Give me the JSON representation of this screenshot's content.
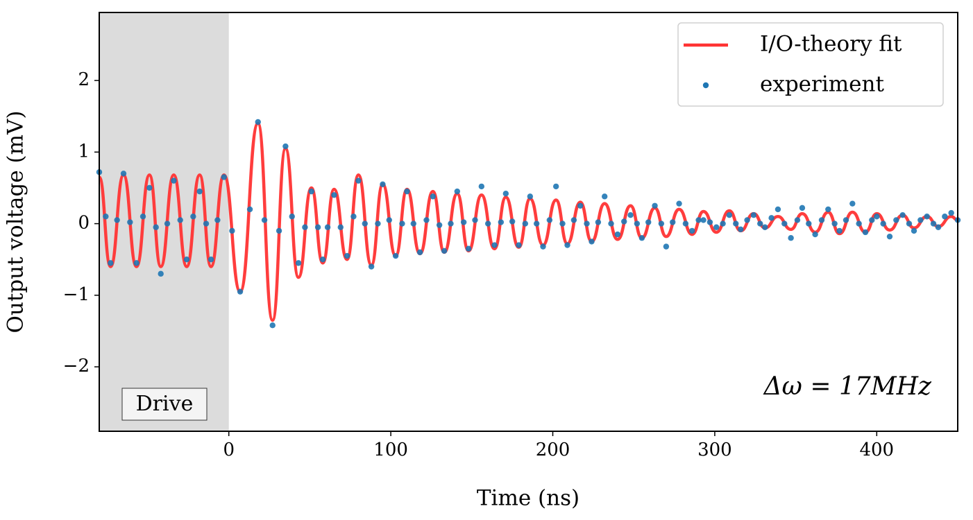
{
  "chart_data": {
    "type": "line",
    "xlabel": "Time (ns)",
    "ylabel": "Output voltage (mV)",
    "xlim": [
      -80,
      450
    ],
    "ylim": [
      -2.9,
      2.95
    ],
    "xticks": [
      0,
      100,
      200,
      300,
      400
    ],
    "yticks": [
      {
        "value": -2,
        "label": "−2"
      },
      {
        "value": -1,
        "label": "−1"
      },
      0,
      1,
      2
    ],
    "legend": "upper right",
    "shaded_region": {
      "xlim": [
        -80,
        0
      ],
      "label": "Drive",
      "color": "#dcdcdc"
    },
    "annotation": "Δω = 17MHz",
    "series": [
      {
        "name": "I/O-theory fit",
        "type": "line",
        "color": "#ff3333",
        "x": [
          -80,
          -73,
          -65,
          -57,
          -49,
          -42,
          -34,
          -26,
          -18,
          -11,
          -3,
          7,
          18,
          27,
          35,
          43,
          51,
          58,
          65,
          73,
          80,
          88,
          95,
          103,
          110,
          118,
          126,
          133,
          141,
          148,
          156,
          164,
          171,
          179,
          186,
          194,
          202,
          209,
          217,
          224,
          232,
          240,
          248,
          255,
          263,
          270,
          278,
          286,
          293,
          301,
          309,
          316,
          324,
          331,
          339,
          347,
          354,
          362,
          370,
          377,
          385,
          393,
          400,
          408,
          416,
          423,
          431,
          438,
          446,
          450
        ],
        "values": [
          0.65,
          -0.6,
          0.68,
          -0.6,
          0.68,
          -0.6,
          0.68,
          -0.6,
          0.68,
          -0.6,
          0.68,
          -0.95,
          1.4,
          -1.35,
          1.05,
          -0.75,
          0.5,
          -0.55,
          0.48,
          -0.5,
          0.68,
          -0.58,
          0.55,
          -0.45,
          0.48,
          -0.42,
          0.45,
          -0.4,
          0.42,
          -0.38,
          0.4,
          -0.35,
          0.37,
          -0.33,
          0.35,
          -0.3,
          0.33,
          -0.28,
          0.3,
          -0.25,
          0.28,
          -0.22,
          0.25,
          -0.2,
          0.22,
          -0.18,
          0.2,
          -0.15,
          0.17,
          -0.12,
          0.18,
          -0.1,
          0.14,
          -0.06,
          0.1,
          -0.08,
          0.14,
          -0.12,
          0.16,
          -0.14,
          0.16,
          -0.12,
          0.14,
          -0.09,
          0.12,
          -0.06,
          0.1,
          -0.04,
          0.1,
          0.05
        ]
      },
      {
        "name": "experiment",
        "type": "scatter",
        "color": "#1f77b4",
        "x": [
          -80,
          -76,
          -73,
          -69,
          -65,
          -61,
          -57,
          -53,
          -49,
          -45,
          -42,
          -38,
          -34,
          -30,
          -26,
          -22,
          -18,
          -14,
          -11,
          -7,
          -3,
          2,
          7,
          13,
          18,
          22,
          27,
          31,
          35,
          39,
          43,
          47,
          51,
          55,
          58,
          61,
          65,
          69,
          73,
          77,
          80,
          84,
          88,
          92,
          95,
          99,
          103,
          107,
          110,
          114,
          118,
          122,
          126,
          130,
          133,
          137,
          141,
          145,
          148,
          152,
          156,
          160,
          164,
          168,
          171,
          175,
          179,
          183,
          186,
          190,
          194,
          198,
          202,
          206,
          209,
          213,
          217,
          221,
          224,
          228,
          232,
          236,
          240,
          244,
          248,
          252,
          255,
          259,
          263,
          267,
          270,
          274,
          278,
          282,
          286,
          290,
          293,
          297,
          301,
          305,
          309,
          313,
          316,
          320,
          324,
          328,
          331,
          335,
          339,
          343,
          347,
          351,
          354,
          358,
          362,
          366,
          370,
          374,
          377,
          381,
          385,
          389,
          393,
          397,
          400,
          404,
          408,
          412,
          416,
          420,
          423,
          427,
          431,
          435,
          438,
          442,
          446,
          450
        ],
        "values": [
          0.72,
          0.1,
          -0.55,
          0.05,
          0.7,
          0.02,
          -0.55,
          0.1,
          0.5,
          -0.05,
          -0.7,
          0.0,
          0.6,
          0.05,
          -0.5,
          0.1,
          0.45,
          0.0,
          -0.5,
          0.05,
          0.65,
          -0.1,
          -0.95,
          0.2,
          1.42,
          0.05,
          -1.42,
          -0.1,
          1.08,
          0.1,
          -0.55,
          -0.05,
          0.45,
          -0.05,
          -0.5,
          -0.05,
          0.4,
          -0.05,
          -0.45,
          0.1,
          0.6,
          0.0,
          -0.6,
          0.0,
          0.55,
          0.05,
          -0.45,
          0.0,
          0.45,
          0.0,
          -0.4,
          0.05,
          0.38,
          -0.02,
          -0.38,
          0.0,
          0.45,
          0.02,
          -0.35,
          0.05,
          0.52,
          0.0,
          -0.3,
          0.02,
          0.42,
          0.03,
          -0.3,
          0.0,
          0.38,
          0.0,
          -0.32,
          0.05,
          0.52,
          0.0,
          -0.3,
          0.05,
          0.25,
          0.0,
          -0.25,
          0.02,
          0.38,
          0.0,
          -0.15,
          0.03,
          0.12,
          0.0,
          -0.2,
          0.02,
          0.25,
          0.0,
          -0.32,
          0.02,
          0.28,
          0.0,
          -0.1,
          0.05,
          0.05,
          0.02,
          -0.05,
          0.0,
          0.12,
          0.0,
          -0.08,
          0.05,
          0.12,
          0.0,
          -0.05,
          0.08,
          0.2,
          0.0,
          -0.2,
          0.05,
          0.22,
          0.0,
          -0.15,
          0.05,
          0.2,
          0.0,
          -0.1,
          0.05,
          0.28,
          0.0,
          -0.12,
          0.05,
          0.1,
          0.0,
          -0.18,
          0.05,
          0.12,
          0.0,
          -0.1,
          0.05,
          0.1,
          0.0,
          -0.05,
          0.1,
          0.15,
          0.05
        ]
      }
    ]
  }
}
